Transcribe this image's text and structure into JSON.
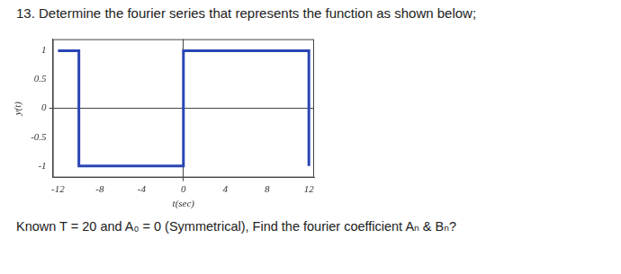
{
  "heading": "13. Determine the fourier series that represents the function as shown below;",
  "chart_data": {
    "type": "line",
    "x": [
      -12,
      -10,
      -10,
      0,
      0,
      12,
      12
    ],
    "values": [
      1,
      1,
      -1,
      -1,
      1,
      1,
      -1
    ],
    "color": "#2a45b5",
    "xlabel": "t(sec)",
    "ylabel": "y(t)",
    "xlim": [
      -12.5,
      12.5
    ],
    "ylim": [
      -1.2,
      1.2
    ],
    "xticks": [
      -12,
      -8,
      -4,
      0,
      4,
      8,
      12
    ],
    "yticks": [
      -1,
      -0.5,
      0,
      0.5,
      1
    ],
    "grid": false
  },
  "footer": "Known T = 20 and A₀ = 0 (Symmetrical), Find the fourier coefficient Aₙ & Bₙ?"
}
